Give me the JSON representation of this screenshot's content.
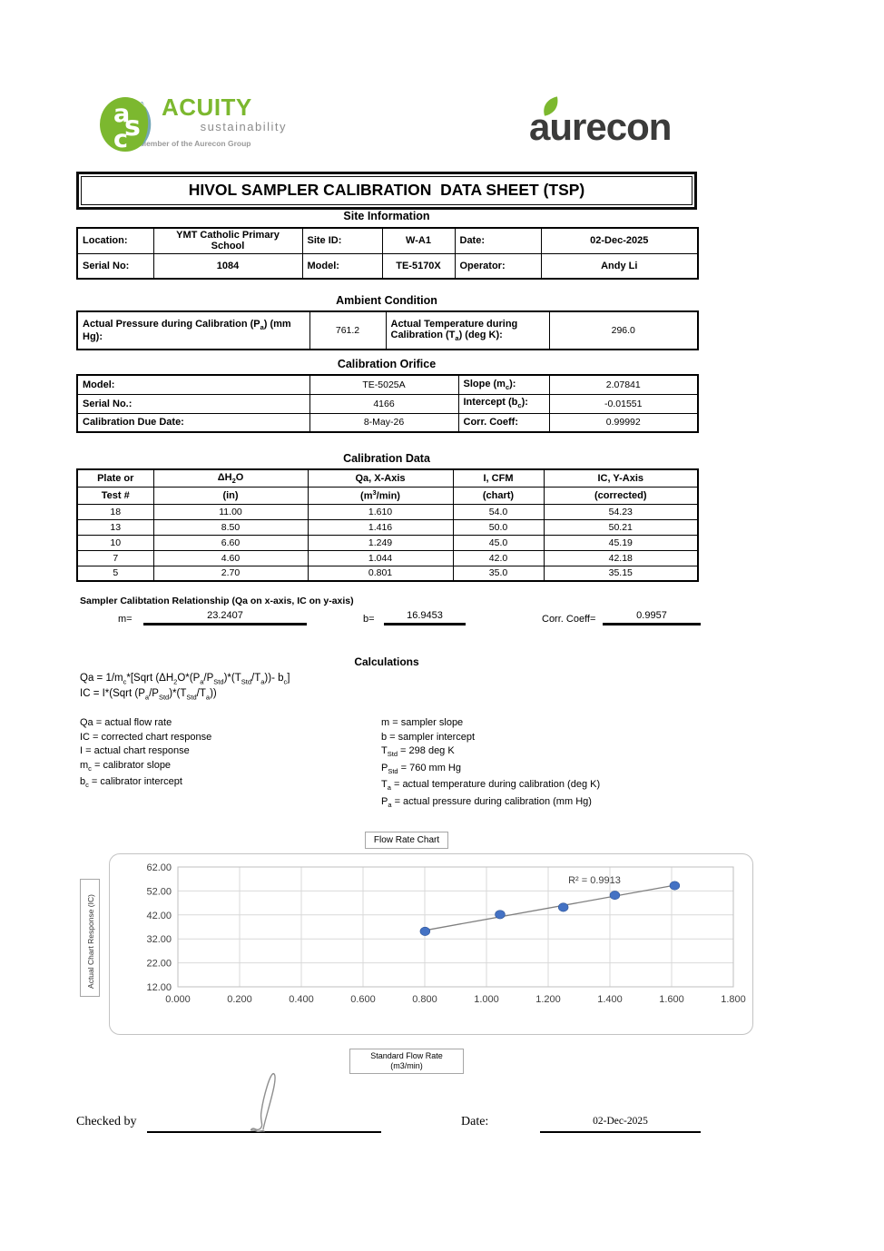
{
  "page": {
    "title": "HIVOL SAMPLER CALIBRATION  DATA SHEET (TSP)"
  },
  "logos": {
    "acuity": {
      "monogram": "asc",
      "name": "ACUITY",
      "subtitle": "sustainability",
      "tagline": "Member of the Aurecon Group",
      "green": "#7cb82f"
    },
    "aurecon": {
      "name": "aurecon",
      "dark": "#3b3b3a",
      "leaf_green": "#7cb82f"
    }
  },
  "site_information": {
    "heading": "Site Information",
    "row1": [
      {
        "label": "Location:",
        "value": "YMT Catholic Primary School"
      },
      {
        "label": "Site ID:",
        "value": "W-A1"
      },
      {
        "label": "Date:",
        "value": "02-Dec-2025"
      }
    ],
    "row2": [
      {
        "label": "Serial No:",
        "value": "1084"
      },
      {
        "label": "Model:",
        "value": "TE-5170X"
      },
      {
        "label": "Operator:",
        "value": "Andy Li"
      }
    ]
  },
  "ambient_condition": {
    "heading": "Ambient Condition",
    "pressure_label": "Actual Pressure during Calibration (P<sub>a</sub>) (mm Hg):",
    "pressure_value": "761.2",
    "temperature_label": "Actual Temperature during Calibration (T<sub>a</sub>) (deg K):",
    "temperature_value": "296.0"
  },
  "calibration_orifice": {
    "heading": "Calibration Orifice",
    "rows": [
      {
        "label1": "Model:",
        "value1": "TE-5025A",
        "label2": "Slope (m<sub>c</sub>):",
        "value2": "2.07841"
      },
      {
        "label1": "Serial No.:",
        "value1": "4166",
        "label2": "Intercept (b<sub>c</sub>):",
        "value2": "-0.01551"
      },
      {
        "label1": "Calibration Due Date:",
        "value1": "8-May-26",
        "label2": "Corr. Coeff:",
        "value2": "0.99992"
      }
    ]
  },
  "calibration_data": {
    "heading": "Calibration Data",
    "header_row1": [
      "Plate or",
      "ΔH<sub>2</sub>O",
      "Qa, X-Axis",
      "I, CFM",
      "IC, Y-Axis"
    ],
    "header_row2": [
      "Test #",
      "(in)",
      "(m<sup>3</sup>/min)",
      "(chart)",
      "(corrected)"
    ],
    "rows": [
      [
        "18",
        "11.00",
        "1.610",
        "54.0",
        "54.23"
      ],
      [
        "13",
        "8.50",
        "1.416",
        "50.0",
        "50.21"
      ],
      [
        "10",
        "6.60",
        "1.249",
        "45.0",
        "45.19"
      ],
      [
        "7",
        "4.60",
        "1.044",
        "42.0",
        "42.18"
      ],
      [
        "5",
        "2.70",
        "0.801",
        "35.0",
        "35.15"
      ]
    ]
  },
  "sampler_relationship": {
    "heading": "Sampler Calibtation Relationship (Qa on x-axis, IC on y-axis)",
    "m_label": "m=",
    "m_value": "23.2407",
    "b_label": "b=",
    "b_value": "16.9453",
    "corr_label": "Corr. Coeff=",
    "corr_value": "0.9957"
  },
  "calculations": {
    "heading": "Calculations",
    "formulas": [
      "Qa = 1/m<sub>c</sub>*[Sqrt (ΔH<sub>2</sub>O*(P<sub>a</sub>/P<sub>Std</sub>)*(T<sub>Std</sub>/T<sub>a</sub>))- b<sub>c</sub>]",
      "IC = I*(Sqrt (P<sub>a</sub>/P<sub>Std</sub>)*(T<sub>Std</sub>/T<sub>a</sub>))"
    ],
    "left_definitions": [
      "Qa = actual flow rate",
      "IC = corrected chart response",
      "I = actual chart response",
      "m<sub>c</sub>  = calibrator slope",
      "b<sub>c</sub>  = calibrator intercept"
    ],
    "right_definitions": [
      "m = sampler slope",
      "b  = sampler intercept",
      "T<sub>Std</sub> = 298 deg K",
      "P<sub>Std</sub> = 760 mm Hg",
      "T<sub>a</sub> = actual temperature during calibration (deg K)",
      "P<sub>a</sub> = actual pressure during calibration (mm Hg)"
    ]
  },
  "chart_data": {
    "type": "scatter",
    "title": "Flow Rate Chart",
    "ylabel": "Actual Chart Response (IC)",
    "xlabel_lines": [
      "Standard Flow Rate",
      "(m3/min)"
    ],
    "x": [
      0.801,
      1.044,
      1.249,
      1.416,
      1.61
    ],
    "y": [
      35.15,
      42.18,
      45.19,
      50.21,
      54.23
    ],
    "trendline": {
      "slope": 23.2407,
      "intercept": 16.9453,
      "x_start": 0.801,
      "x_end": 1.61
    },
    "annotation": "R² = 0.9913",
    "annotation_pos": {
      "x": 1.35,
      "y": 55.2
    },
    "xlim": [
      0,
      1.8
    ],
    "ylim": [
      12,
      62
    ],
    "x_ticks": [
      0,
      0.2,
      0.4,
      0.6,
      0.8,
      1.0,
      1.2,
      1.4,
      1.6,
      1.8
    ],
    "y_ticks": [
      12,
      22,
      32,
      42,
      52,
      62
    ],
    "x_tick_labels": [
      "0.000",
      "0.200",
      "0.400",
      "0.600",
      "0.800",
      "1.000",
      "1.200",
      "1.400",
      "1.600",
      "1.800"
    ],
    "y_tick_labels": [
      "12.00",
      "22.00",
      "32.00",
      "42.00",
      "52.00",
      "62.00"
    ],
    "grid": true,
    "legend": "none",
    "point_color": "#4472c4",
    "point_edge_color": "#2f5597",
    "trendline_color": "#7f7f7f",
    "grid_color": "#d9d9d9"
  },
  "footer": {
    "checked_by_label": "Checked by",
    "date_label": "Date:",
    "date_value": "02-Dec-2025"
  }
}
